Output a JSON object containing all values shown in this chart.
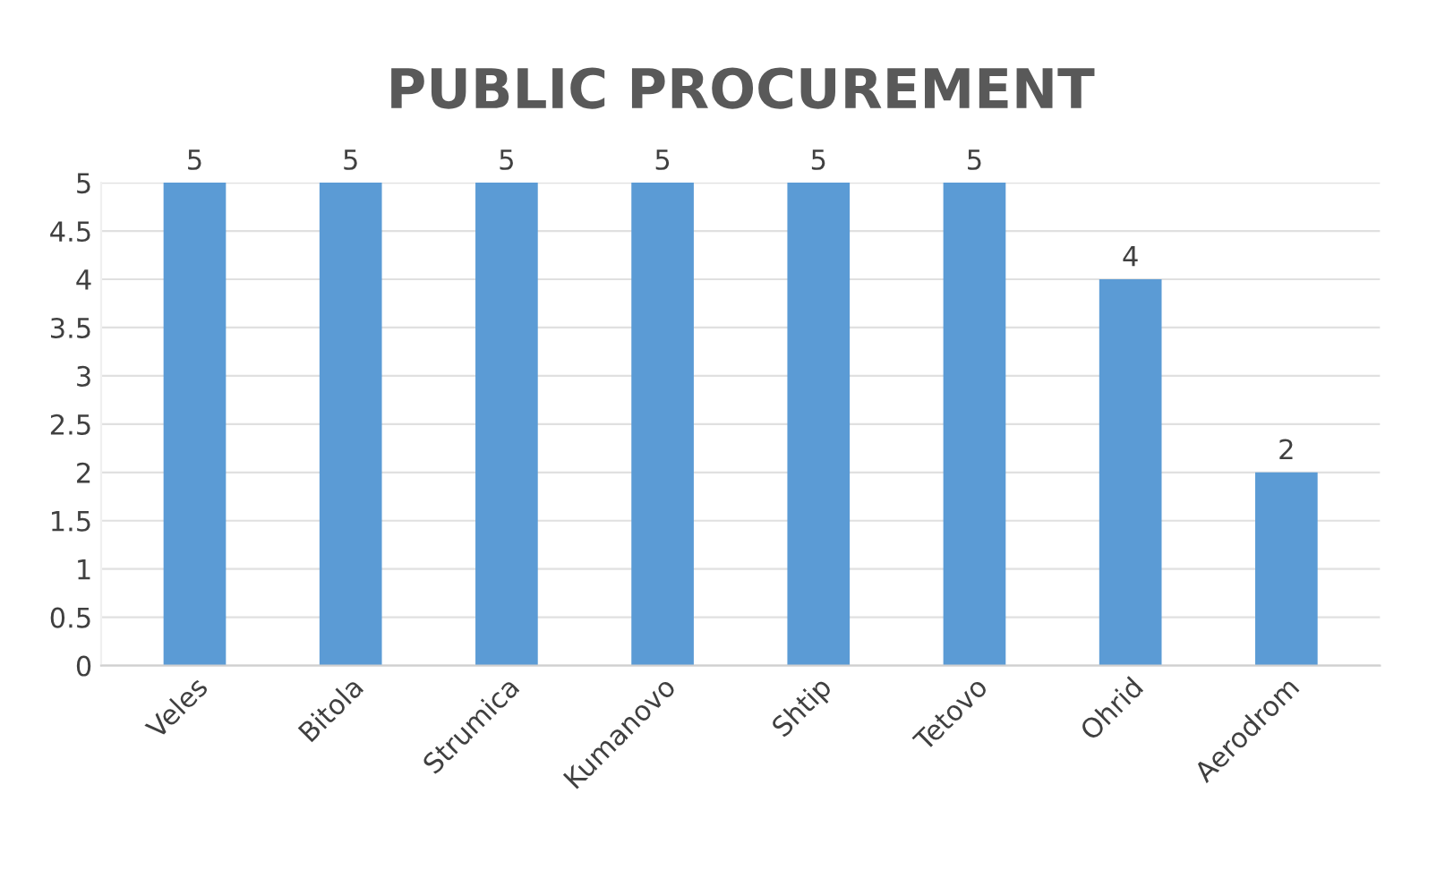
{
  "chart_data": {
    "type": "bar",
    "title": "PUBLIC PROCUREMENT",
    "categories": [
      "Veles",
      "Bitola",
      "Strumica",
      "Kumanovo",
      "Shtip",
      "Tetovo",
      "Ohrid",
      "Aerodrom"
    ],
    "values": [
      5,
      5,
      5,
      5,
      5,
      5,
      4,
      2
    ],
    "color": "#5b9bd5",
    "ylim": [
      0,
      5
    ],
    "yticks": [
      0,
      0.5,
      1,
      1.5,
      2,
      2.5,
      3,
      3.5,
      4,
      4.5,
      5
    ],
    "grid": "y",
    "data_labels": true
  }
}
